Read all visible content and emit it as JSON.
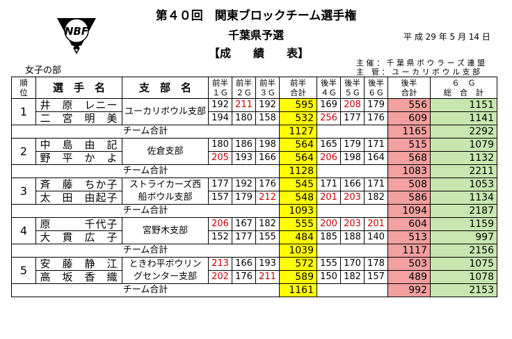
{
  "header": {
    "title": "第４０回　関東ブロックチーム選手権",
    "subtitle": "千葉県予選",
    "doc_type": "【成　　績　　表】",
    "date": "平 成 29 年 5 月 14 日",
    "organizer": "主 催 ： 千 葉 県 ボ ウ ラ ー ズ 連 盟",
    "manager": "主　管 ： ユ ー カ リ ボ ウ ル 支 部",
    "division": "女子の部",
    "logo_text": "NBF"
  },
  "columns": {
    "rank": "順\n位",
    "name": "選　手　名",
    "branch": "支　部　名",
    "g1": "前半\n１Ｇ",
    "g2": "前半\n２Ｇ",
    "g3": "前半\n３Ｇ",
    "first_total": "前半\n合計",
    "g4": "後半\n４Ｇ",
    "g5": "後半\n５Ｇ",
    "g6": "後半\n６Ｇ",
    "second_total": "後半\n合計",
    "grand_total": "６　Ｇ\n総　合　計"
  },
  "colors": {
    "first_total": "#ffff00",
    "second_total": "#f2a0a0",
    "grand_total": "#c8e6b0",
    "high_score": "#d00000"
  },
  "team_total_label": "チーム合計",
  "teams": [
    {
      "rank": "1",
      "branch_lines": [
        "ユーカリボウル支部",
        ""
      ],
      "players": [
        {
          "name": "井　原　レニー",
          "g": [
            "192",
            "211",
            "192"
          ],
          "red": [
            false,
            true,
            false
          ],
          "first": "595",
          "g2": [
            "169",
            "208",
            "179"
          ],
          "red2": [
            false,
            true,
            false
          ],
          "second": "556",
          "total": "1151"
        },
        {
          "name": "二　宮　明　美",
          "g": [
            "194",
            "180",
            "158"
          ],
          "red": [
            false,
            false,
            false
          ],
          "first": "532",
          "g2": [
            "256",
            "177",
            "176"
          ],
          "red2": [
            true,
            false,
            false
          ],
          "second": "609",
          "total": "1141"
        }
      ],
      "team_first": "1127",
      "team_second": "1165",
      "team_total": "2292"
    },
    {
      "rank": "2",
      "branch_lines": [
        "佐倉支部",
        ""
      ],
      "players": [
        {
          "name": "中　島　由　記",
          "g": [
            "180",
            "186",
            "198"
          ],
          "red": [
            false,
            false,
            false
          ],
          "first": "564",
          "g2": [
            "165",
            "179",
            "171"
          ],
          "red2": [
            false,
            false,
            false
          ],
          "second": "515",
          "total": "1079"
        },
        {
          "name": "野　平　か　よ",
          "g": [
            "205",
            "193",
            "166"
          ],
          "red": [
            true,
            false,
            false
          ],
          "first": "564",
          "g2": [
            "206",
            "198",
            "164"
          ],
          "red2": [
            true,
            false,
            false
          ],
          "second": "568",
          "total": "1132"
        }
      ],
      "team_first": "1128",
      "team_second": "1083",
      "team_total": "2211"
    },
    {
      "rank": "3",
      "branch_lines": [
        "ストライカーズ西",
        "船ボウル支部"
      ],
      "players": [
        {
          "name": "斉　藤　ちか子",
          "g": [
            "177",
            "192",
            "176"
          ],
          "red": [
            false,
            false,
            false
          ],
          "first": "545",
          "g2": [
            "171",
            "166",
            "171"
          ],
          "red2": [
            false,
            false,
            false
          ],
          "second": "508",
          "total": "1053"
        },
        {
          "name": "太　田　由起子",
          "g": [
            "157",
            "179",
            "212"
          ],
          "red": [
            false,
            false,
            true
          ],
          "first": "548",
          "g2": [
            "201",
            "203",
            "182"
          ],
          "red2": [
            true,
            true,
            false
          ],
          "second": "586",
          "total": "1134"
        }
      ],
      "team_first": "1093",
      "team_second": "1094",
      "team_total": "2187"
    },
    {
      "rank": "4",
      "branch_lines": [
        "宮野木支部",
        ""
      ],
      "players": [
        {
          "name": "原　　　千代子",
          "g": [
            "206",
            "167",
            "182"
          ],
          "red": [
            true,
            false,
            false
          ],
          "first": "555",
          "g2": [
            "200",
            "203",
            "201"
          ],
          "red2": [
            true,
            true,
            true
          ],
          "second": "604",
          "total": "1159"
        },
        {
          "name": "大　貫　広　子",
          "g": [
            "152",
            "177",
            "155"
          ],
          "red": [
            false,
            false,
            false
          ],
          "first": "484",
          "g2": [
            "185",
            "188",
            "140"
          ],
          "red2": [
            false,
            false,
            false
          ],
          "second": "513",
          "total": "997"
        }
      ],
      "team_first": "1039",
      "team_second": "1117",
      "team_total": "2156"
    },
    {
      "rank": "5",
      "branch_lines": [
        "ときわ平ボウリン",
        "グセンター支部"
      ],
      "players": [
        {
          "name": "安　藤　静　江",
          "g": [
            "213",
            "166",
            "193"
          ],
          "red": [
            true,
            false,
            false
          ],
          "first": "572",
          "g2": [
            "155",
            "170",
            "178"
          ],
          "red2": [
            false,
            false,
            false
          ],
          "second": "503",
          "total": "1075"
        },
        {
          "name": "高　坂　香　織",
          "g": [
            "202",
            "176",
            "211"
          ],
          "red": [
            true,
            false,
            true
          ],
          "first": "589",
          "g2": [
            "150",
            "182",
            "157"
          ],
          "red2": [
            false,
            false,
            false
          ],
          "second": "489",
          "total": "1078"
        }
      ],
      "team_first": "1161",
      "team_second": "992",
      "team_total": "2153"
    }
  ]
}
